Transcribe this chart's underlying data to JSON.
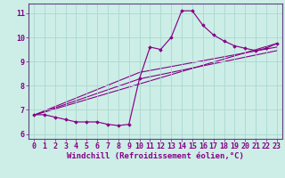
{
  "background_color": "#cceee6",
  "grid_color": "#aad8d0",
  "line_color": "#880088",
  "marker_color": "#880088",
  "xlabel": "Windchill (Refroidissement éolien,°C)",
  "xlabel_fontsize": 6.5,
  "tick_fontsize": 6.0,
  "xlim": [
    -0.5,
    23.5
  ],
  "ylim": [
    5.8,
    11.4
  ],
  "yticks": [
    6,
    7,
    8,
    9,
    10,
    11
  ],
  "xticks": [
    0,
    1,
    2,
    3,
    4,
    5,
    6,
    7,
    8,
    9,
    10,
    11,
    12,
    13,
    14,
    15,
    16,
    17,
    18,
    19,
    20,
    21,
    22,
    23
  ],
  "line1_x": [
    0,
    1,
    2,
    3,
    4,
    5,
    6,
    7,
    8,
    9,
    10,
    11,
    12,
    13,
    14,
    15,
    16,
    17,
    18,
    19,
    20,
    21,
    22,
    23
  ],
  "line1_y": [
    6.8,
    6.8,
    6.7,
    6.6,
    6.5,
    6.5,
    6.5,
    6.4,
    6.35,
    6.4,
    8.3,
    9.6,
    9.5,
    10.0,
    11.1,
    11.1,
    10.5,
    10.1,
    9.85,
    9.65,
    9.55,
    9.45,
    9.55,
    9.75
  ],
  "line2_x": [
    0,
    10,
    23
  ],
  "line2_y": [
    6.78,
    8.28,
    9.45
  ],
  "line3_x": [
    0,
    10,
    23
  ],
  "line3_y": [
    6.78,
    8.55,
    9.6
  ],
  "line4_x": [
    0,
    23
  ],
  "line4_y": [
    6.78,
    9.75
  ]
}
